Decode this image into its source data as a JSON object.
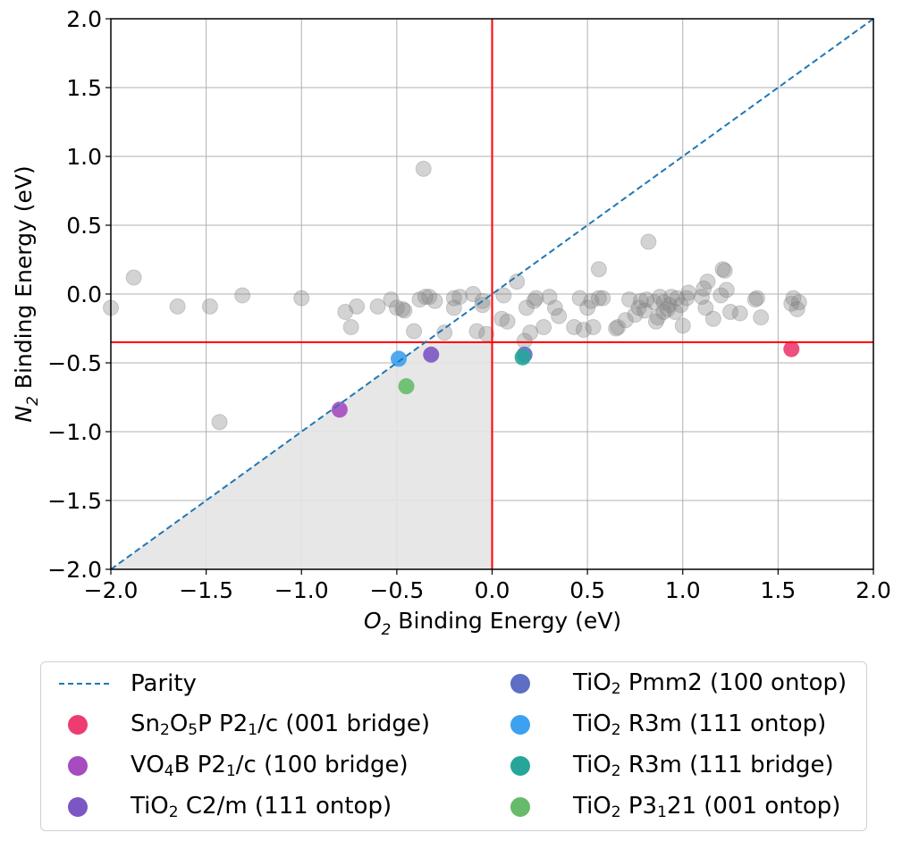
{
  "chart_data": {
    "type": "scatter",
    "xlabel_var": "O",
    "xlabel_sub": "2",
    "xlabel_rest": " Binding Energy (eV)",
    "ylabel_var": "N",
    "ylabel_sub": "2",
    "ylabel_rest": " Binding Energy (eV)",
    "xlim": [
      -2.0,
      2.0
    ],
    "ylim": [
      -2.0,
      2.0
    ],
    "xticks": [
      "−2.0",
      "−1.5",
      "−1.0",
      "−0.5",
      "0.0",
      "0.5",
      "1.0",
      "1.5",
      "2.0"
    ],
    "yticks": [
      "−2.0",
      "−1.5",
      "−1.0",
      "−0.5",
      "0.0",
      "0.5",
      "1.0",
      "1.5",
      "2.0"
    ],
    "grid": true,
    "shaded_region": {
      "x0": -2.0,
      "x1": 0.0,
      "y_top": -0.35,
      "color": "#e4e4e4"
    },
    "threshold_lines": {
      "x": 0.0,
      "y": -0.35,
      "color": "#ff0000"
    },
    "parity_color": "#1f77b4",
    "background_points": {
      "color": "#808080",
      "x": [
        -2.0,
        -1.88,
        -1.65,
        -1.48,
        -1.43,
        -1.31,
        -1.0,
        -0.77,
        -0.74,
        -0.71,
        -0.6,
        -0.53,
        -0.5,
        -0.47,
        -0.46,
        -0.41,
        -0.38,
        -0.36,
        -0.35,
        -0.33,
        -0.3,
        -0.25,
        -0.2,
        -0.2,
        -0.17,
        -0.1,
        -0.08,
        -0.05,
        -0.05,
        -0.03,
        0.05,
        0.06,
        0.08,
        0.13,
        0.17,
        0.18,
        0.2,
        0.22,
        0.23,
        0.27,
        0.3,
        0.33,
        0.35,
        0.43,
        0.46,
        0.48,
        0.5,
        0.52,
        0.53,
        0.56,
        0.56,
        0.58,
        0.65,
        0.66,
        0.7,
        0.72,
        0.75,
        0.77,
        0.78,
        0.8,
        0.81,
        0.82,
        0.85,
        0.86,
        0.87,
        0.88,
        0.9,
        0.9,
        0.92,
        0.93,
        0.94,
        0.96,
        0.97,
        0.99,
        1.0,
        1.02,
        1.03,
        1.1,
        1.11,
        1.12,
        1.13,
        1.16,
        1.2,
        1.21,
        1.22,
        1.23,
        1.25,
        1.3,
        1.38,
        1.39,
        1.41,
        1.57,
        1.58,
        1.6,
        1.61
      ],
      "y": [
        -0.1,
        0.12,
        -0.09,
        -0.09,
        -0.93,
        -0.01,
        -0.03,
        -0.13,
        -0.24,
        -0.09,
        -0.09,
        -0.04,
        -0.1,
        -0.11,
        -0.12,
        -0.27,
        -0.04,
        0.91,
        -0.02,
        -0.02,
        -0.05,
        -0.28,
        -0.03,
        -0.1,
        -0.02,
        0.0,
        -0.27,
        -0.08,
        -0.05,
        -0.29,
        -0.18,
        -0.01,
        -0.2,
        0.09,
        -0.34,
        -0.1,
        -0.28,
        -0.05,
        -0.03,
        -0.24,
        -0.02,
        -0.1,
        -0.16,
        -0.24,
        -0.03,
        -0.26,
        -0.1,
        -0.05,
        -0.24,
        -0.03,
        0.18,
        -0.03,
        -0.25,
        -0.24,
        -0.19,
        -0.04,
        -0.15,
        -0.1,
        -0.05,
        -0.12,
        -0.04,
        0.38,
        -0.06,
        -0.2,
        -0.17,
        -0.02,
        -0.13,
        -0.06,
        -0.11,
        -0.08,
        -0.02,
        -0.13,
        -0.03,
        -0.08,
        -0.23,
        -0.03,
        0.01,
        -0.02,
        0.04,
        -0.1,
        0.09,
        -0.18,
        -0.01,
        0.18,
        0.17,
        0.03,
        -0.13,
        -0.14,
        -0.04,
        -0.03,
        -0.17,
        -0.07,
        -0.03,
        -0.11,
        -0.06
      ]
    },
    "series": [
      {
        "name": "Parity",
        "kind": "line"
      },
      {
        "name_parts": [
          "Sn",
          "2",
          "O",
          "5",
          "P P2",
          "1",
          "/c (001 bridge)"
        ],
        "color": "#ed3c6f",
        "x": [
          1.57
        ],
        "y": [
          -0.4
        ]
      },
      {
        "name_parts": [
          "VO",
          "4",
          "B P2",
          "1",
          "/c (100 bridge)"
        ],
        "color": "#a64bc0",
        "x": [
          -0.8
        ],
        "y": [
          -0.84
        ]
      },
      {
        "name_parts": [
          "TiO",
          "2",
          " C2/m (111 ontop)"
        ],
        "color": "#7c56c2",
        "x": [
          -0.32
        ],
        "y": [
          -0.44
        ]
      },
      {
        "name_parts": [
          "TiO",
          "2",
          " Pmm2 (100 ontop)"
        ],
        "color": "#5d6ec4",
        "x": [
          0.17
        ],
        "y": [
          -0.44
        ]
      },
      {
        "name_parts": [
          "TiO",
          "2",
          " R3m (111 ontop)"
        ],
        "color": "#3ca1f0",
        "x": [
          -0.49
        ],
        "y": [
          -0.47
        ]
      },
      {
        "name_parts": [
          "TiO",
          "2",
          " R3m (111 bridge)"
        ],
        "color": "#26a69a",
        "x": [
          0.16
        ],
        "y": [
          -0.46
        ]
      },
      {
        "name_parts": [
          "TiO",
          "2",
          " P3",
          "1",
          "21 (001 ontop)"
        ],
        "color": "#66bb6a",
        "x": [
          -0.45
        ],
        "y": [
          -0.67
        ]
      }
    ]
  }
}
